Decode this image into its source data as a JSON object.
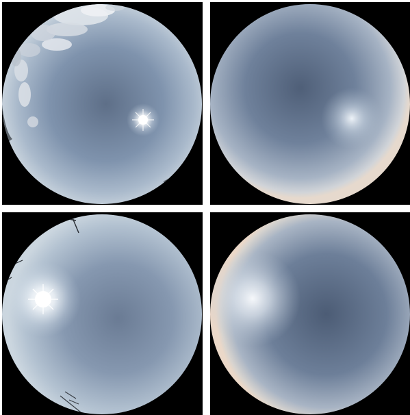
{
  "panels": [
    {
      "id": "top-left",
      "kind": "photo",
      "sun": "center-right",
      "features": [
        "clouds",
        "treeline"
      ]
    },
    {
      "id": "top-right",
      "kind": "rendered",
      "sun": "center-right"
    },
    {
      "id": "bottom-left",
      "kind": "photo",
      "sun": "left",
      "features": [
        "antenna",
        "wires"
      ]
    },
    {
      "id": "bottom-right",
      "kind": "rendered",
      "sun": "left"
    }
  ],
  "colors": {
    "background": "#000000",
    "separator": "#ffffff",
    "sky_zenith": "#4a5a72",
    "sky_mid": "#7f93ad",
    "sky_horizon": "#c9d3dc",
    "horizon_warm": "#e8d6c8",
    "sun": "#ffffff"
  }
}
